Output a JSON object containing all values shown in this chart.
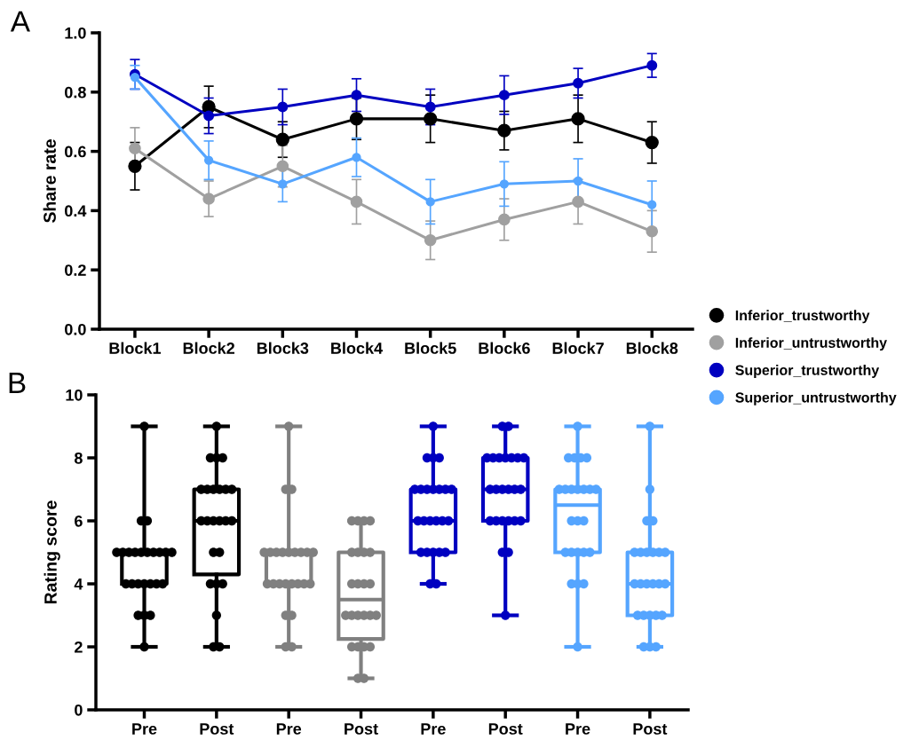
{
  "chart_data": [
    {
      "type": "line",
      "ylabel": "Share rate",
      "annotations": [
        "A"
      ],
      "categories": [
        "Block1",
        "Block2",
        "Block3",
        "Block4",
        "Block5",
        "Block6",
        "Block7",
        "Block8"
      ],
      "ylim": [
        0,
        1
      ],
      "yticks": [
        {
          "value": 0,
          "label": "0.0"
        },
        0.2,
        0.4,
        0.6,
        0.8,
        {
          "value": 1,
          "label": "1.0"
        }
      ],
      "grid": false,
      "legend": "bottom right",
      "marker": "circle",
      "line_style": "solid",
      "series": [
        {
          "name": "Inferior_trustworthy",
          "color": "#000000",
          "values": [
            0.55,
            0.75,
            0.64,
            0.71,
            0.71,
            0.67,
            0.71,
            0.63
          ],
          "errors": [
            0.08,
            0.07,
            0.06,
            0.07,
            0.08,
            0.065,
            0.08,
            0.07
          ]
        },
        {
          "name": "Inferior_untrustworthy",
          "color": "#a0a0a0",
          "values": [
            0.61,
            0.44,
            0.55,
            0.43,
            0.3,
            0.37,
            0.43,
            0.33
          ],
          "errors": [
            0.07,
            0.06,
            0.07,
            0.075,
            0.065,
            0.07,
            0.075,
            0.07
          ]
        },
        {
          "name": "Superior_trustworthy",
          "color": "#0000c0",
          "values": [
            0.86,
            0.72,
            0.75,
            0.79,
            0.75,
            0.79,
            0.83,
            0.89
          ],
          "errors": [
            0.05,
            0.06,
            0.06,
            0.055,
            0.06,
            0.065,
            0.05,
            0.04
          ]
        },
        {
          "name": "Superior_untrustworthy",
          "color": "#55a5ff",
          "values": [
            0.85,
            0.57,
            0.49,
            0.58,
            0.43,
            0.49,
            0.5,
            0.42
          ],
          "errors": [
            0.04,
            0.065,
            0.06,
            0.065,
            0.075,
            0.075,
            0.075,
            0.08
          ]
        }
      ]
    },
    {
      "type": "box",
      "ylabel": "Rating score",
      "annotations": [
        "B"
      ],
      "categories": [
        "Pre",
        "Post",
        "Pre",
        "Post",
        "Pre",
        "Post",
        "Pre",
        "Post"
      ],
      "ylim": [
        0,
        10
      ],
      "yticks": [
        0,
        2,
        4,
        6,
        8,
        10
      ],
      "grid": false,
      "colors": [
        "#000000",
        "#000000",
        "#808080",
        "#808080",
        "#0000c0",
        "#0000c0",
        "#55a5ff",
        "#55a5ff"
      ],
      "boxes": [
        {
          "low": 2,
          "q1": 4,
          "median": 5,
          "q3": 5,
          "high": 9
        },
        {
          "low": 2,
          "q1": 4.3,
          "median": 6,
          "q3": 7,
          "high": 9
        },
        {
          "low": 2,
          "q1": 4,
          "median": 5,
          "q3": 5,
          "high": 9
        },
        {
          "low": 1,
          "q1": 2.25,
          "median": 3.5,
          "q3": 5,
          "high": 6
        },
        {
          "low": 4,
          "q1": 5,
          "median": 6,
          "q3": 7,
          "high": 9
        },
        {
          "low": 3,
          "q1": 6,
          "median": 7,
          "q3": 8,
          "high": 9
        },
        {
          "low": 2,
          "q1": 5,
          "median": 6.5,
          "q3": 7,
          "high": 9
        },
        {
          "low": 2,
          "q1": 3,
          "median": 4,
          "q3": 5,
          "high": 9
        }
      ],
      "series": [
        {
          "type": "scatter",
          "colors": [
            "#000000",
            "#000000",
            "#808080",
            "#808080",
            "#0000c0",
            "#0000c0",
            "#55a5ff",
            "#55a5ff"
          ],
          "values": [
            9,
            9,
            9,
            6,
            9,
            9,
            9,
            9
          ]
        },
        {
          "type": "scatter",
          "colors": [
            "#000000",
            "#000000",
            "#808080",
            "#808080",
            "#0000c0",
            "#0000c0",
            "#55a5ff",
            "#55a5ff"
          ],
          "values": [
            6,
            8,
            7,
            6,
            8,
            9,
            8,
            7
          ]
        },
        {
          "type": "scatter",
          "colors": [
            "#000000",
            "#000000",
            "#808080",
            "#808080",
            "#0000c0",
            "#0000c0",
            "#55a5ff",
            "#55a5ff"
          ],
          "values": [
            6,
            8,
            7,
            6,
            8,
            8,
            8,
            6
          ]
        },
        {
          "type": "scatter",
          "colors": [
            "#000000",
            "#000000",
            "#808080",
            "#808080",
            "#0000c0",
            "#0000c0",
            "#55a5ff",
            "#55a5ff"
          ],
          "values": [
            5,
            8,
            5,
            6,
            8,
            8,
            8,
            6
          ]
        },
        {
          "type": "scatter",
          "colors": [
            "#000000",
            "#000000",
            "#808080",
            "#808080",
            "#0000c0",
            "#0000c0",
            "#55a5ff",
            "#55a5ff"
          ],
          "values": [
            5,
            7,
            5,
            5,
            7,
            8,
            8,
            5
          ]
        },
        {
          "type": "scatter",
          "colors": [
            "#000000",
            "#000000",
            "#808080",
            "#808080",
            "#0000c0",
            "#0000c0",
            "#55a5ff",
            "#55a5ff"
          ],
          "values": [
            5,
            7,
            5,
            5,
            7,
            8,
            7,
            5
          ]
        },
        {
          "type": "scatter",
          "colors": [
            "#000000",
            "#000000",
            "#808080",
            "#808080",
            "#0000c0",
            "#0000c0",
            "#55a5ff",
            "#55a5ff"
          ],
          "values": [
            5,
            7,
            5,
            5,
            7,
            8,
            7,
            5
          ]
        },
        {
          "type": "scatter",
          "colors": [
            "#000000",
            "#000000",
            "#808080",
            "#808080",
            "#0000c0",
            "#0000c0",
            "#55a5ff",
            "#55a5ff"
          ],
          "values": [
            5,
            7,
            5,
            5,
            7,
            8,
            7,
            5
          ]
        },
        {
          "type": "scatter",
          "colors": [
            "#000000",
            "#000000",
            "#808080",
            "#808080",
            "#0000c0",
            "#0000c0",
            "#55a5ff",
            "#55a5ff"
          ],
          "values": [
            5,
            7,
            5,
            4,
            7,
            8,
            7,
            5
          ]
        },
        {
          "type": "scatter",
          "colors": [
            "#000000",
            "#000000",
            "#808080",
            "#808080",
            "#0000c0",
            "#0000c0",
            "#55a5ff",
            "#55a5ff"
          ],
          "values": [
            5,
            7,
            5,
            4,
            7,
            7,
            7,
            5
          ]
        },
        {
          "type": "scatter",
          "colors": [
            "#000000",
            "#000000",
            "#808080",
            "#808080",
            "#0000c0",
            "#0000c0",
            "#55a5ff",
            "#55a5ff"
          ],
          "values": [
            5,
            6,
            5,
            4,
            7,
            7,
            7,
            4
          ]
        },
        {
          "type": "scatter",
          "colors": [
            "#000000",
            "#000000",
            "#808080",
            "#808080",
            "#0000c0",
            "#0000c0",
            "#55a5ff",
            "#55a5ff"
          ],
          "values": [
            5,
            6,
            5,
            4,
            6,
            7,
            7,
            4
          ]
        },
        {
          "type": "scatter",
          "colors": [
            "#000000",
            "#000000",
            "#808080",
            "#808080",
            "#0000c0",
            "#0000c0",
            "#55a5ff",
            "#55a5ff"
          ],
          "values": [
            5,
            6,
            4,
            3,
            6,
            7,
            6,
            4
          ]
        },
        {
          "type": "scatter",
          "colors": [
            "#000000",
            "#000000",
            "#808080",
            "#808080",
            "#0000c0",
            "#0000c0",
            "#55a5ff",
            "#55a5ff"
          ],
          "values": [
            4,
            6,
            4,
            3,
            6,
            7,
            6,
            4
          ]
        },
        {
          "type": "scatter",
          "colors": [
            "#000000",
            "#000000",
            "#808080",
            "#808080",
            "#0000c0",
            "#0000c0",
            "#55a5ff",
            "#55a5ff"
          ],
          "values": [
            4,
            6,
            4,
            3,
            6,
            7,
            6,
            4
          ]
        },
        {
          "type": "scatter",
          "colors": [
            "#000000",
            "#000000",
            "#808080",
            "#808080",
            "#0000c0",
            "#0000c0",
            "#55a5ff",
            "#55a5ff"
          ],
          "values": [
            4,
            6,
            4,
            3,
            6,
            6,
            5,
            4
          ]
        },
        {
          "type": "scatter",
          "colors": [
            "#000000",
            "#000000",
            "#808080",
            "#808080",
            "#0000c0",
            "#0000c0",
            "#55a5ff",
            "#55a5ff"
          ],
          "values": [
            4,
            5,
            4,
            3,
            6,
            6,
            5,
            3
          ]
        },
        {
          "type": "scatter",
          "colors": [
            "#000000",
            "#000000",
            "#808080",
            "#808080",
            "#0000c0",
            "#0000c0",
            "#55a5ff",
            "#55a5ff"
          ],
          "values": [
            4,
            5,
            4,
            3,
            5,
            6,
            5,
            3
          ]
        },
        {
          "type": "scatter",
          "colors": [
            "#000000",
            "#000000",
            "#808080",
            "#808080",
            "#0000c0",
            "#0000c0",
            "#55a5ff",
            "#55a5ff"
          ],
          "values": [
            4,
            4,
            4,
            2,
            5,
            6,
            5,
            3
          ]
        },
        {
          "type": "scatter",
          "colors": [
            "#000000",
            "#000000",
            "#808080",
            "#808080",
            "#0000c0",
            "#0000c0",
            "#55a5ff",
            "#55a5ff"
          ],
          "values": [
            4,
            4,
            4,
            2,
            5,
            6,
            5,
            3
          ]
        },
        {
          "type": "scatter",
          "colors": [
            "#000000",
            "#000000",
            "#808080",
            "#808080",
            "#0000c0",
            "#0000c0",
            "#55a5ff",
            "#55a5ff"
          ],
          "values": [
            3,
            4,
            3,
            2,
            5,
            6,
            4,
            3
          ]
        },
        {
          "type": "scatter",
          "colors": [
            "#000000",
            "#000000",
            "#808080",
            "#808080",
            "#0000c0",
            "#0000c0",
            "#55a5ff",
            "#55a5ff"
          ],
          "values": [
            3,
            3,
            3,
            2,
            5,
            5,
            4,
            2
          ]
        },
        {
          "type": "scatter",
          "colors": [
            "#000000",
            "#000000",
            "#808080",
            "#808080",
            "#0000c0",
            "#0000c0",
            "#55a5ff",
            "#55a5ff"
          ],
          "values": [
            3,
            2,
            2,
            1,
            4,
            5,
            4,
            2
          ]
        },
        {
          "type": "scatter",
          "colors": [
            "#000000",
            "#000000",
            "#808080",
            "#808080",
            "#0000c0",
            "#0000c0",
            "#55a5ff",
            "#55a5ff"
          ],
          "values": [
            2,
            2,
            2,
            1,
            4,
            3,
            2,
            2
          ]
        }
      ]
    }
  ]
}
